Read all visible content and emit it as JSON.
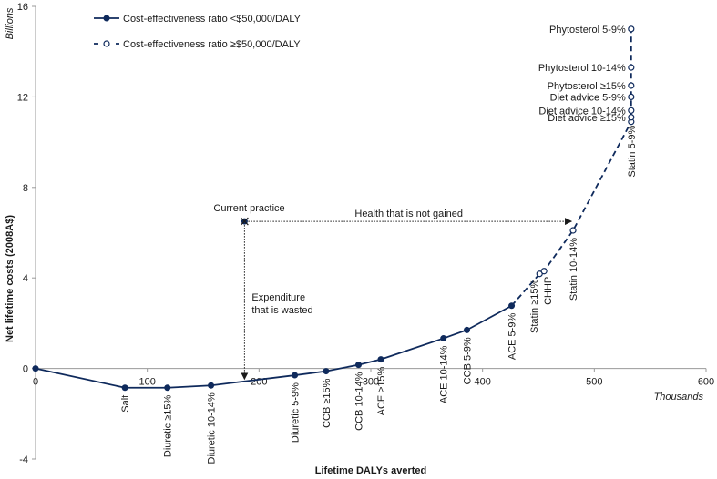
{
  "chart_data": {
    "type": "line",
    "title": "",
    "xlabel": "Lifetime DALYs averted",
    "xunit": "Thousands",
    "ylabel": "Net lifetime costs (2008A$)",
    "yunit": "Billions",
    "xlim": [
      0,
      600
    ],
    "ylim": [
      -4,
      16
    ],
    "xticks": [
      0,
      100,
      200,
      300,
      400,
      500,
      600
    ],
    "yticks": [
      -4,
      0,
      4,
      8,
      12,
      16
    ],
    "grid": false,
    "legend_position": "top-left",
    "legend": [
      {
        "label": "Cost-effectiveness ratio <$50,000/DALY",
        "style": "solid-filled"
      },
      {
        "label": "Cost-effectiveness ratio ≥$50,000/DALY",
        "style": "dashed-open"
      }
    ],
    "series": [
      {
        "name": "Cost-effectiveness ratio <$50,000/DALY",
        "points": [
          {
            "label": "",
            "x": 0,
            "y": 0
          },
          {
            "label": "Salt",
            "x": 80,
            "y": -0.85
          },
          {
            "label": "Diuretic ≥15%",
            "x": 118,
            "y": -0.85
          },
          {
            "label": "Diuretic 10-14%",
            "x": 157,
            "y": -0.75
          },
          {
            "label": "Diuretic 5-9%",
            "x": 232,
            "y": -0.3
          },
          {
            "label": "CCB ≥15%",
            "x": 260,
            "y": -0.12
          },
          {
            "label": "CCB 10-14%",
            "x": 289,
            "y": 0.16
          },
          {
            "label": "ACE ≥15%",
            "x": 309,
            "y": 0.4
          },
          {
            "label": "ACE 10-14%",
            "x": 365,
            "y": 1.33
          },
          {
            "label": "CCB 5-9%",
            "x": 386,
            "y": 1.7
          },
          {
            "label": "ACE 5-9%",
            "x": 426,
            "y": 2.77
          }
        ]
      },
      {
        "name": "Cost-effectiveness ratio ≥$50,000/DALY",
        "points": [
          {
            "label": "ACE 5-9%",
            "x": 426,
            "y": 2.77,
            "hidden": true
          },
          {
            "label": "Statin ≥15%",
            "x": 451,
            "y": 4.18
          },
          {
            "label": "CHHP",
            "x": 455,
            "y": 4.3
          },
          {
            "label": "Statin 10-14%",
            "x": 481,
            "y": 6.1
          },
          {
            "label": "Statin 5-9%",
            "x": 533,
            "y": 10.9
          },
          {
            "label": "Diet advice ≥15%",
            "x": 533,
            "y": 11.1
          },
          {
            "label": "Diet advice 10-14%",
            "x": 533,
            "y": 11.4
          },
          {
            "label": "Diet advice 5-9%",
            "x": 533,
            "y": 12.0
          },
          {
            "label": "Phytosterol ≥15%",
            "x": 533,
            "y": 12.5
          },
          {
            "label": "Phytosterol 10-14%",
            "x": 533,
            "y": 13.3
          },
          {
            "label": "Phytosterol 5-9%",
            "x": 533,
            "y": 15.0
          }
        ]
      }
    ],
    "current_practice": {
      "label": "Current practice",
      "x": 187,
      "y": 6.5
    },
    "annotations": [
      {
        "text": "Health that is not gained",
        "type": "horizontal-arrow",
        "from_x": 187,
        "to_x": 481,
        "y": 6.5
      },
      {
        "text": "Expenditure that is wasted",
        "lines": [
          "Expenditure",
          "that is wasted"
        ],
        "type": "vertical-arrow",
        "x": 187,
        "from_y": 6.5,
        "to_y": -0.55
      }
    ],
    "colors": {
      "line": "#0f2a5c",
      "axis": "#999999",
      "text": "#1a1a1a"
    }
  }
}
